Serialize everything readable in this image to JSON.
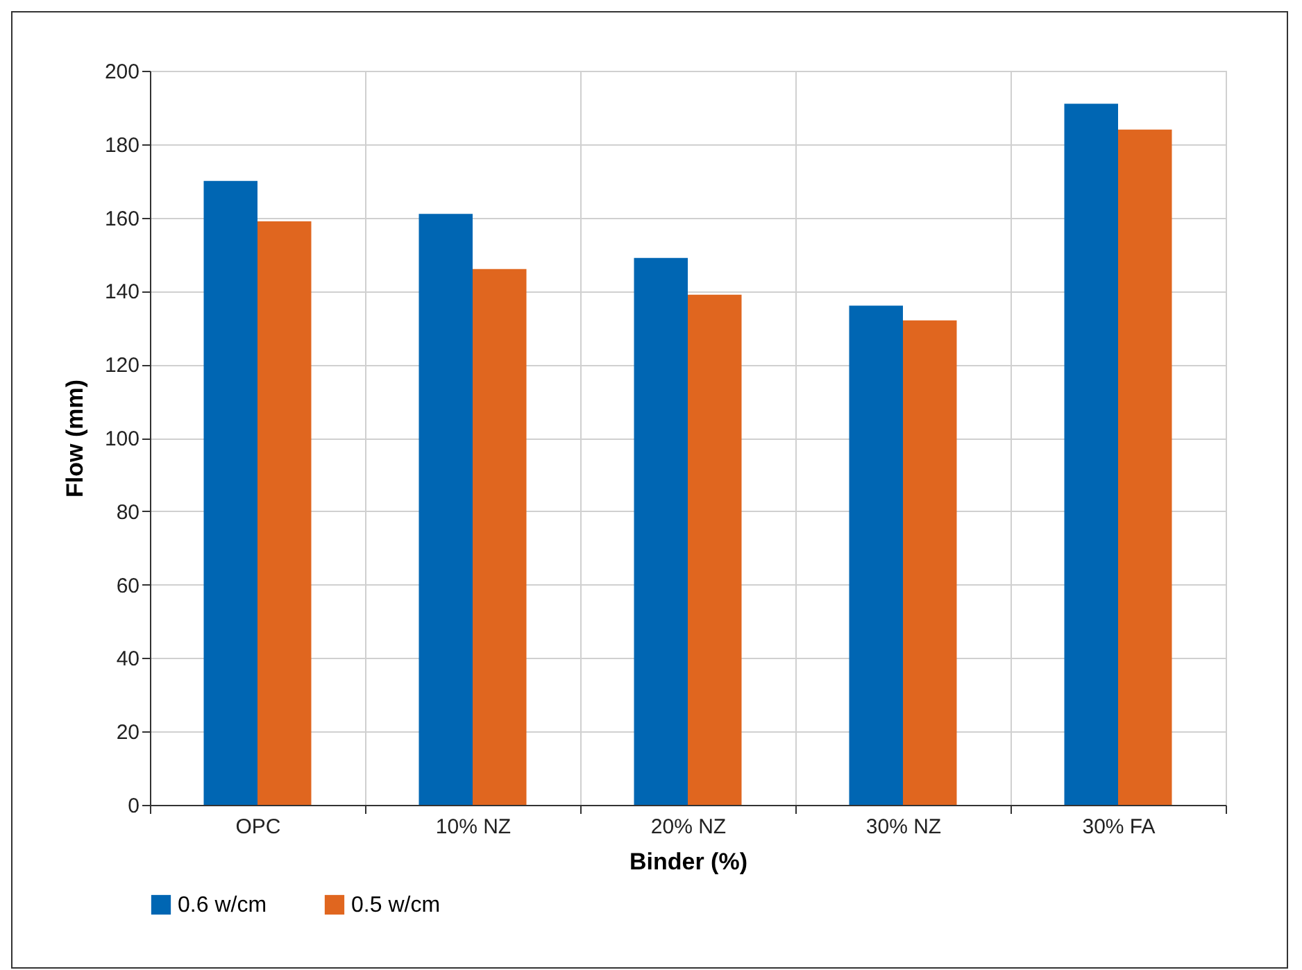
{
  "chart_data": {
    "type": "bar",
    "xlabel": "Binder (%)",
    "ylabel": "Flow (mm)",
    "categories": [
      "OPC",
      "10% NZ",
      "20% NZ",
      "30% NZ",
      "30% FA"
    ],
    "series": [
      {
        "name": "0.6 w/cm",
        "color": "#0066b3",
        "values": [
          170,
          161,
          149,
          136,
          191
        ]
      },
      {
        "name": "0.5 w/cm",
        "color": "#e0661f",
        "values": [
          159,
          146,
          139,
          132,
          184
        ]
      }
    ],
    "ylim": [
      0,
      200
    ],
    "yticks": [
      0,
      20,
      40,
      60,
      80,
      100,
      120,
      140,
      160,
      180,
      200
    ],
    "grid": true,
    "legend": "bottom"
  }
}
